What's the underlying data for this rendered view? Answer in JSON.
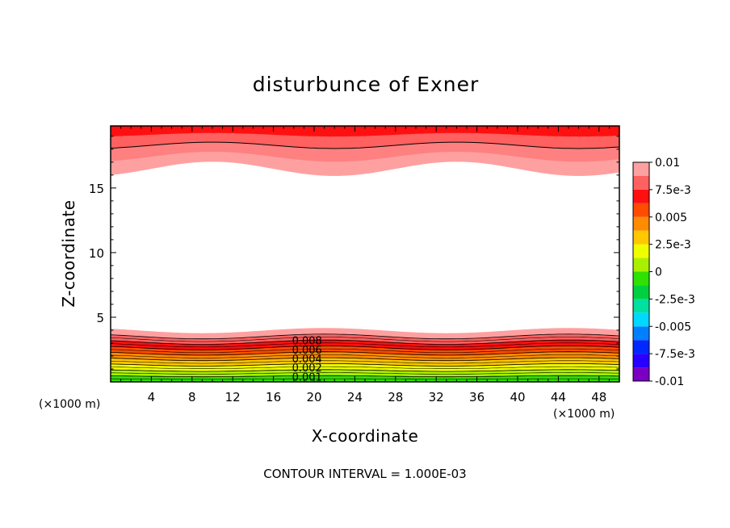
{
  "chart_data": {
    "type": "contour",
    "title": "disturbunce of Exner",
    "xlabel": "X-coordinate",
    "ylabel": "Z-coordinate",
    "x_unit_left": "(×1000 m)",
    "x_unit_right": "(×1000 m)",
    "xlim": [
      0,
      50
    ],
    "ylim": [
      0,
      19.8
    ],
    "xticks": [
      4,
      8,
      12,
      16,
      20,
      24,
      28,
      32,
      36,
      40,
      44,
      48
    ],
    "yticks": [
      5,
      10,
      15
    ],
    "colorbar": {
      "min": -0.01,
      "max": 0.01,
      "step": 0.00125,
      "labels": [
        {
          "value": 0.01,
          "text": "0.01"
        },
        {
          "value": 0.0075,
          "text": "7.5e-3"
        },
        {
          "value": 0.005,
          "text": "0.005"
        },
        {
          "value": 0.0025,
          "text": "2.5e-3"
        },
        {
          "value": 0,
          "text": "0"
        },
        {
          "value": -0.0025,
          "text": "-2.5e-3"
        },
        {
          "value": -0.005,
          "text": "-0.005"
        },
        {
          "value": -0.0075,
          "text": "-7.5e-3"
        },
        {
          "value": -0.01,
          "text": "-0.01"
        }
      ],
      "colors": [
        "#7b00c4",
        "#2800ff",
        "#0028ff",
        "#0080ff",
        "#00d8ff",
        "#00e0a0",
        "#00d040",
        "#30e000",
        "#a8f000",
        "#f0ff00",
        "#ffc800",
        "#ff8c00",
        "#ff4c00",
        "#ff1010",
        "#ff6060",
        "#ffa0a0"
      ]
    },
    "top_band": {
      "boundary_base": 16.5,
      "boundary_amp": 0.55,
      "levels_above": [
        17.4,
        18.3,
        19.1
      ],
      "colors_top_down": [
        "#ff1010",
        "#ff6060",
        "#ff8080",
        "#ffa0a0"
      ]
    },
    "bottom_band": {
      "top_base": 3.95,
      "top_amp": 0.2,
      "colors_bottom_up": [
        "#30e000",
        "#a8f000",
        "#f0ff00",
        "#ffc800",
        "#ff8c00",
        "#ff4c00",
        "#ff1010",
        "#ff6060",
        "#ffa0a0"
      ]
    },
    "contour_labels": [
      "0.008",
      "0.006",
      "0.004",
      "0.002",
      "0.001"
    ],
    "footer": "CONTOUR INTERVAL = 1.000E-03"
  }
}
